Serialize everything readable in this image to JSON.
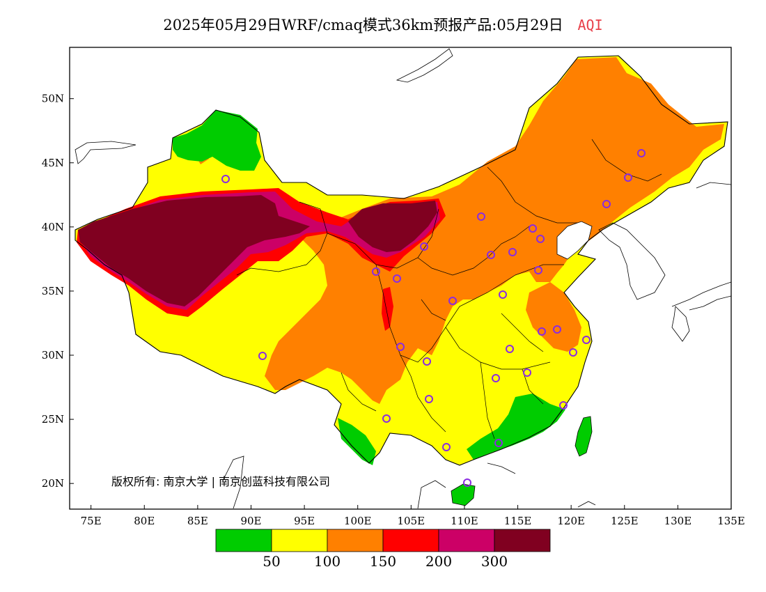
{
  "title": {
    "main": "2025年05月29日WRF/cmaq模式36km预报产品:05月29日",
    "variable": "AQI"
  },
  "map": {
    "lon_range": [
      73,
      135
    ],
    "lat_range": [
      18,
      54
    ],
    "lon_ticks": [
      "75E",
      "80E",
      "85E",
      "90E",
      "95E",
      "100E",
      "105E",
      "110E",
      "115E",
      "120E",
      "125E",
      "130E",
      "135E"
    ],
    "lat_ticks": [
      "20N",
      "25N",
      "30N",
      "35N",
      "40N",
      "45N",
      "50N"
    ],
    "copyright": "版权所有: 南京大学 | 南京创蓝科技有限公司"
  },
  "legend": {
    "colors": [
      "#00cc00",
      "#ffff00",
      "#ff8000",
      "#ff0000",
      "#cc0066",
      "#800020"
    ],
    "thresholds": [
      "50",
      "100",
      "150",
      "200",
      "300"
    ]
  },
  "stations_count_note": ""
}
